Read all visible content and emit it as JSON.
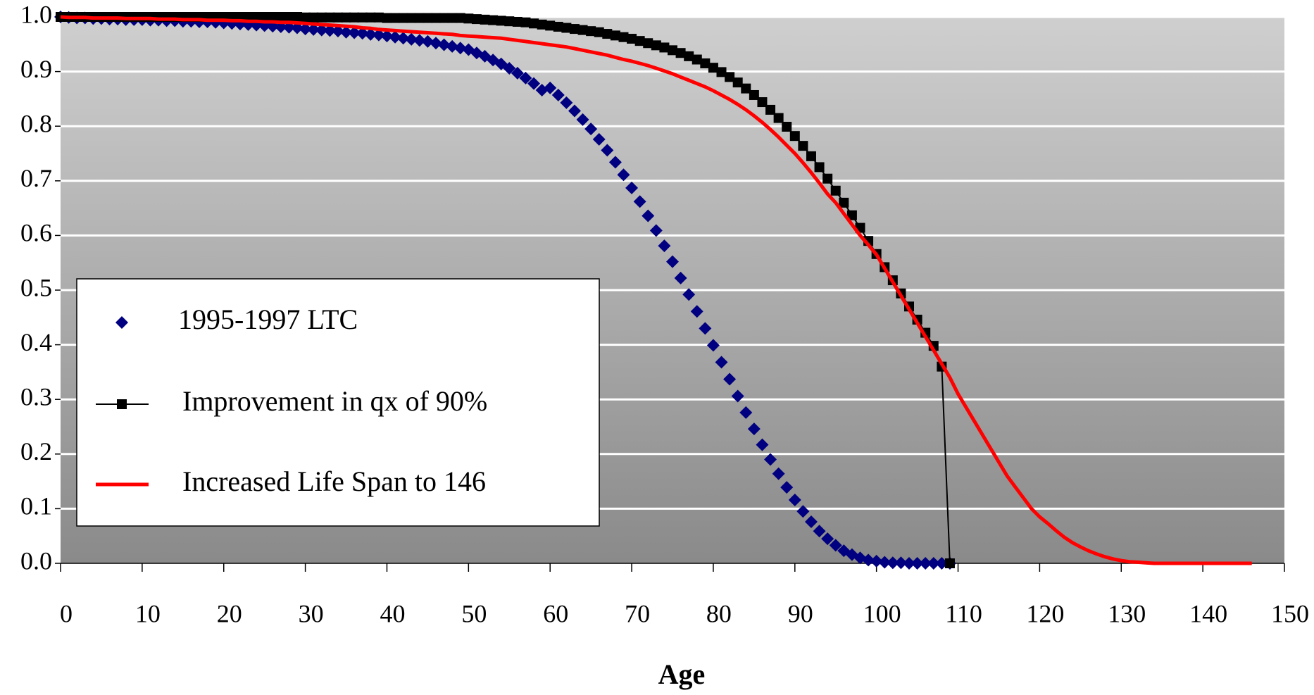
{
  "chart_data": {
    "type": "line",
    "x_label": "Age",
    "x": [
      0,
      1,
      2,
      3,
      4,
      5,
      6,
      7,
      8,
      9,
      10,
      11,
      12,
      13,
      14,
      15,
      16,
      17,
      18,
      19,
      20,
      21,
      22,
      23,
      24,
      25,
      26,
      27,
      28,
      29,
      30,
      31,
      32,
      33,
      34,
      35,
      36,
      37,
      38,
      39,
      40,
      41,
      42,
      43,
      44,
      45,
      46,
      47,
      48,
      49,
      50,
      51,
      52,
      53,
      54,
      55,
      56,
      57,
      58,
      59,
      60,
      61,
      62,
      63,
      64,
      65,
      66,
      67,
      68,
      69,
      70,
      71,
      72,
      73,
      74,
      75,
      76,
      77,
      78,
      79,
      80,
      81,
      82,
      83,
      84,
      85,
      86,
      87,
      88,
      89,
      90,
      91,
      92,
      93,
      94,
      95,
      96,
      97,
      98,
      99,
      100,
      101,
      102,
      103,
      104,
      105,
      106,
      107,
      108,
      109,
      110,
      111,
      112,
      113,
      114,
      115,
      116,
      117,
      118,
      119,
      120,
      121,
      122,
      123,
      124,
      125,
      126,
      127,
      128,
      129,
      130,
      131,
      132,
      133,
      134,
      135,
      136,
      137,
      138,
      139,
      140,
      141,
      142,
      143,
      144,
      145,
      146
    ],
    "series": [
      {
        "name": "1995-1997 LTC",
        "color": "#000080",
        "marker": "diamond",
        "values": [
          1.0,
          0.999,
          0.998,
          0.998,
          0.997,
          0.997,
          0.996,
          0.996,
          0.995,
          0.995,
          0.995,
          0.994,
          0.994,
          0.993,
          0.993,
          0.992,
          0.992,
          0.991,
          0.991,
          0.99,
          0.989,
          0.988,
          0.987,
          0.986,
          0.985,
          0.984,
          0.983,
          0.982,
          0.981,
          0.98,
          0.978,
          0.977,
          0.976,
          0.975,
          0.974,
          0.972,
          0.971,
          0.97,
          0.968,
          0.967,
          0.965,
          0.963,
          0.961,
          0.959,
          0.957,
          0.955,
          0.952,
          0.949,
          0.946,
          0.943,
          0.94,
          0.934,
          0.928,
          0.921,
          0.914,
          0.906,
          0.897,
          0.888,
          0.878,
          0.866,
          0.87,
          0.857,
          0.843,
          0.828,
          0.812,
          0.795,
          0.776,
          0.756,
          0.734,
          0.711,
          0.687,
          0.662,
          0.636,
          0.609,
          0.581,
          0.552,
          0.522,
          0.492,
          0.461,
          0.43,
          0.399,
          0.368,
          0.337,
          0.306,
          0.276,
          0.246,
          0.217,
          0.19,
          0.164,
          0.139,
          0.116,
          0.095,
          0.076,
          0.059,
          0.045,
          0.033,
          0.023,
          0.016,
          0.01,
          0.006,
          0.004,
          0.002,
          0.001,
          0.001,
          0,
          0,
          0,
          0,
          0,
          0,
          null,
          null,
          null,
          null,
          null,
          null,
          null,
          null,
          null,
          null,
          null,
          null,
          null,
          null,
          null,
          null,
          null,
          null,
          null,
          null,
          null,
          null,
          null,
          null,
          null,
          null,
          null,
          null,
          null,
          null,
          null,
          null,
          null,
          null,
          null,
          null,
          null
        ]
      },
      {
        "name": "Improvement in qx of 90%",
        "color": "#000000",
        "marker": "square",
        "values": [
          1.0,
          1.0,
          1.0,
          1.0,
          1.0,
          1.0,
          1.0,
          1.0,
          1.0,
          1.0,
          1.0,
          1.0,
          1.0,
          1.0,
          1.0,
          1.0,
          1.0,
          1.0,
          1.0,
          1.0,
          1.0,
          1.0,
          1.0,
          1.0,
          1.0,
          1.0,
          1.0,
          1.0,
          1.0,
          1.0,
          0.999,
          0.999,
          0.999,
          0.999,
          0.999,
          0.999,
          0.999,
          0.999,
          0.999,
          0.999,
          0.998,
          0.998,
          0.998,
          0.998,
          0.998,
          0.998,
          0.998,
          0.998,
          0.998,
          0.998,
          0.997,
          0.996,
          0.995,
          0.994,
          0.993,
          0.992,
          0.991,
          0.99,
          0.988,
          0.986,
          0.984,
          0.982,
          0.98,
          0.978,
          0.976,
          0.974,
          0.972,
          0.969,
          0.966,
          0.963,
          0.96,
          0.956,
          0.952,
          0.948,
          0.944,
          0.939,
          0.934,
          0.928,
          0.922,
          0.915,
          0.907,
          0.899,
          0.89,
          0.88,
          0.869,
          0.857,
          0.844,
          0.83,
          0.815,
          0.799,
          0.782,
          0.764,
          0.745,
          0.725,
          0.704,
          0.682,
          0.66,
          0.637,
          0.614,
          0.59,
          0.566,
          0.542,
          0.518,
          0.494,
          0.47,
          0.446,
          0.422,
          0.398,
          0.36,
          0,
          null,
          null,
          null,
          null,
          null,
          null,
          null,
          null,
          null,
          null,
          null,
          null,
          null,
          null,
          null,
          null,
          null,
          null,
          null,
          null,
          null,
          null,
          null,
          null,
          null,
          null,
          null,
          null,
          null,
          null,
          null,
          null,
          null,
          null,
          null,
          null,
          null
        ]
      },
      {
        "name": "Increased Life Span to 146",
        "color": "#ff0000",
        "marker": "none",
        "values": [
          1.0,
          0.999,
          0.999,
          0.999,
          0.998,
          0.998,
          0.998,
          0.998,
          0.997,
          0.997,
          0.997,
          0.997,
          0.996,
          0.996,
          0.996,
          0.995,
          0.995,
          0.995,
          0.994,
          0.994,
          0.994,
          0.993,
          0.993,
          0.992,
          0.992,
          0.991,
          0.991,
          0.99,
          0.99,
          0.989,
          0.988,
          0.987,
          0.986,
          0.985,
          0.984,
          0.983,
          0.982,
          0.98,
          0.979,
          0.977,
          0.976,
          0.975,
          0.974,
          0.973,
          0.972,
          0.971,
          0.97,
          0.969,
          0.968,
          0.966,
          0.965,
          0.964,
          0.963,
          0.962,
          0.961,
          0.959,
          0.957,
          0.955,
          0.953,
          0.951,
          0.949,
          0.947,
          0.945,
          0.942,
          0.939,
          0.936,
          0.933,
          0.93,
          0.926,
          0.922,
          0.919,
          0.915,
          0.911,
          0.906,
          0.901,
          0.896,
          0.89,
          0.884,
          0.878,
          0.872,
          0.865,
          0.857,
          0.849,
          0.84,
          0.83,
          0.819,
          0.807,
          0.794,
          0.78,
          0.765,
          0.75,
          0.733,
          0.715,
          0.696,
          0.676,
          0.66,
          0.64,
          0.62,
          0.6,
          0.583,
          0.565,
          0.54,
          0.515,
          0.49,
          0.465,
          0.44,
          0.415,
          0.39,
          0.365,
          0.34,
          0.31,
          0.285,
          0.26,
          0.235,
          0.21,
          0.185,
          0.16,
          0.14,
          0.12,
          0.1,
          0.085,
          0.073,
          0.06,
          0.048,
          0.038,
          0.03,
          0.023,
          0.017,
          0.012,
          0.008,
          0.005,
          0.003,
          0.002,
          0.001,
          0,
          0,
          0,
          0,
          0,
          0,
          0,
          0,
          0,
          0,
          0,
          0,
          0
        ]
      }
    ],
    "xlim": [
      0,
      150
    ],
    "xticks": [
      0,
      10,
      20,
      30,
      40,
      50,
      60,
      70,
      80,
      90,
      100,
      110,
      120,
      130,
      140,
      150
    ],
    "ylim": [
      0,
      1
    ],
    "yticks": [
      {
        "value": 0,
        "label": "0.0"
      },
      0.1,
      0.2,
      0.3,
      0.4,
      0.5,
      0.6,
      0.7,
      0.8,
      0.9,
      {
        "value": 1,
        "label": "1.0"
      }
    ],
    "grid": true,
    "legend": "left"
  }
}
